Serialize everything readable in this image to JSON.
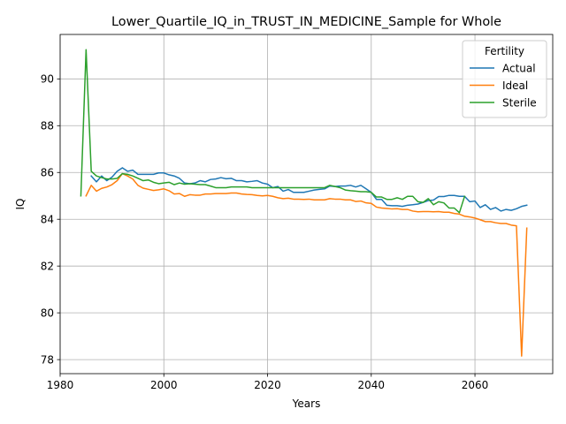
{
  "chart_data": {
    "type": "line",
    "title": "Lower_Quartile_IQ_in_TRUST_IN_MEDICINE_Sample for Whole",
    "xlabel": "Years",
    "ylabel": "IQ",
    "xlim": [
      1980,
      2075
    ],
    "ylim": [
      77.4,
      91.9
    ],
    "xticks": [
      1980,
      2000,
      2020,
      2040,
      2060
    ],
    "yticks": [
      78,
      80,
      82,
      84,
      86,
      88,
      90
    ],
    "grid": true,
    "legend": {
      "title": "Fertility",
      "position": "top-right"
    },
    "series": [
      {
        "name": "Actual",
        "color": "#1f77b4",
        "x": [
          1986,
          1987,
          1988,
          1989,
          1990,
          1991,
          1992,
          1993,
          1994,
          1995,
          1996,
          1997,
          1998,
          1999,
          2000,
          2001,
          2002,
          2003,
          2004,
          2005,
          2006,
          2007,
          2008,
          2009,
          2010,
          2011,
          2012,
          2013,
          2014,
          2015,
          2016,
          2017,
          2018,
          2019,
          2020,
          2021,
          2022,
          2023,
          2024,
          2025,
          2026,
          2027,
          2028,
          2029,
          2030,
          2031,
          2032,
          2033,
          2034,
          2035,
          2036,
          2037,
          2038,
          2039,
          2040,
          2041,
          2042,
          2043,
          2044,
          2045,
          2046,
          2047,
          2048,
          2049,
          2050,
          2051,
          2052,
          2053,
          2054,
          2055,
          2056,
          2057,
          2058,
          2059,
          2060,
          2061,
          2062,
          2063,
          2064,
          2065,
          2066,
          2067,
          2068,
          2069,
          2070
        ],
        "values": [
          85.85,
          85.6,
          85.85,
          85.65,
          85.8,
          86.05,
          86.2,
          86.05,
          86.1,
          85.92,
          85.92,
          85.92,
          85.92,
          85.98,
          85.98,
          85.9,
          85.85,
          85.75,
          85.55,
          85.52,
          85.55,
          85.65,
          85.6,
          85.7,
          85.72,
          85.78,
          85.73,
          85.75,
          85.65,
          85.65,
          85.6,
          85.62,
          85.65,
          85.55,
          85.5,
          85.35,
          85.4,
          85.2,
          85.27,
          85.15,
          85.15,
          85.15,
          85.2,
          85.25,
          85.28,
          85.3,
          85.42,
          85.4,
          85.42,
          85.42,
          85.45,
          85.38,
          85.45,
          85.3,
          85.15,
          84.85,
          84.85,
          84.6,
          84.58,
          84.58,
          84.55,
          84.6,
          84.62,
          84.65,
          84.72,
          84.8,
          84.82,
          84.97,
          84.97,
          85.02,
          85.02,
          84.98,
          84.98,
          84.75,
          84.78,
          84.5,
          84.62,
          84.42,
          84.5,
          84.35,
          84.42,
          84.38,
          84.45,
          84.55,
          84.6
        ]
      },
      {
        "name": "Ideal",
        "color": "#ff7f0e",
        "x": [
          1985,
          1986,
          1987,
          1988,
          1989,
          1990,
          1991,
          1992,
          1993,
          1994,
          1995,
          1996,
          1997,
          1998,
          1999,
          2000,
          2001,
          2002,
          2003,
          2004,
          2005,
          2006,
          2007,
          2008,
          2009,
          2010,
          2011,
          2012,
          2013,
          2014,
          2015,
          2016,
          2017,
          2018,
          2019,
          2020,
          2021,
          2022,
          2023,
          2024,
          2025,
          2026,
          2027,
          2028,
          2029,
          2030,
          2031,
          2032,
          2033,
          2034,
          2035,
          2036,
          2037,
          2038,
          2039,
          2040,
          2041,
          2042,
          2043,
          2044,
          2045,
          2046,
          2047,
          2048,
          2049,
          2050,
          2051,
          2052,
          2053,
          2054,
          2055,
          2056,
          2057,
          2058,
          2059,
          2060,
          2061,
          2062,
          2063,
          2064,
          2065,
          2066,
          2067,
          2068,
          2069,
          2070
        ],
        "values": [
          85.0,
          85.45,
          85.2,
          85.32,
          85.38,
          85.48,
          85.65,
          85.95,
          85.85,
          85.72,
          85.45,
          85.33,
          85.28,
          85.23,
          85.26,
          85.3,
          85.22,
          85.08,
          85.1,
          84.98,
          85.05,
          85.03,
          85.03,
          85.08,
          85.08,
          85.1,
          85.1,
          85.1,
          85.12,
          85.12,
          85.08,
          85.06,
          85.05,
          85.02,
          85.0,
          85.02,
          84.98,
          84.92,
          84.88,
          84.9,
          84.86,
          84.86,
          84.85,
          84.86,
          84.83,
          84.83,
          84.83,
          84.88,
          84.86,
          84.86,
          84.83,
          84.83,
          84.76,
          84.78,
          84.7,
          84.68,
          84.52,
          84.48,
          84.46,
          84.44,
          84.45,
          84.42,
          84.42,
          84.35,
          84.32,
          84.33,
          84.33,
          84.32,
          84.33,
          84.3,
          84.3,
          84.25,
          84.22,
          84.13,
          84.1,
          84.05,
          83.98,
          83.9,
          83.9,
          83.85,
          83.82,
          83.82,
          83.75,
          83.72,
          78.15,
          83.62
        ]
      },
      {
        "name": "Sterile",
        "color": "#2ca02c",
        "x": [
          1984,
          1985,
          1986,
          1987,
          1988,
          1989,
          1990,
          1991,
          1992,
          1993,
          1994,
          1995,
          1996,
          1997,
          1998,
          1999,
          2000,
          2001,
          2002,
          2003,
          2004,
          2005,
          2006,
          2007,
          2008,
          2009,
          2010,
          2011,
          2012,
          2013,
          2014,
          2015,
          2016,
          2017,
          2018,
          2019,
          2020,
          2021,
          2022,
          2023,
          2024,
          2025,
          2026,
          2027,
          2028,
          2029,
          2030,
          2031,
          2032,
          2033,
          2034,
          2035,
          2036,
          2037,
          2038,
          2039,
          2040,
          2041,
          2042,
          2043,
          2044,
          2045,
          2046,
          2047,
          2048,
          2049,
          2050,
          2051,
          2052,
          2053,
          2054,
          2055,
          2056,
          2057,
          2058
        ],
        "values": [
          85.0,
          91.25,
          86.05,
          85.85,
          85.78,
          85.72,
          85.72,
          85.75,
          85.95,
          85.92,
          85.85,
          85.75,
          85.65,
          85.68,
          85.58,
          85.52,
          85.55,
          85.58,
          85.48,
          85.55,
          85.5,
          85.52,
          85.5,
          85.48,
          85.48,
          85.42,
          85.35,
          85.35,
          85.35,
          85.38,
          85.38,
          85.38,
          85.38,
          85.35,
          85.35,
          85.35,
          85.35,
          85.35,
          85.35,
          85.35,
          85.35,
          85.35,
          85.35,
          85.35,
          85.35,
          85.35,
          85.35,
          85.35,
          85.45,
          85.4,
          85.35,
          85.25,
          85.22,
          85.2,
          85.18,
          85.18,
          85.15,
          84.95,
          84.95,
          84.85,
          84.85,
          84.92,
          84.85,
          84.98,
          84.98,
          84.75,
          84.72,
          84.88,
          84.62,
          84.75,
          84.7,
          84.48,
          84.48,
          84.28,
          84.98
        ]
      }
    ]
  }
}
